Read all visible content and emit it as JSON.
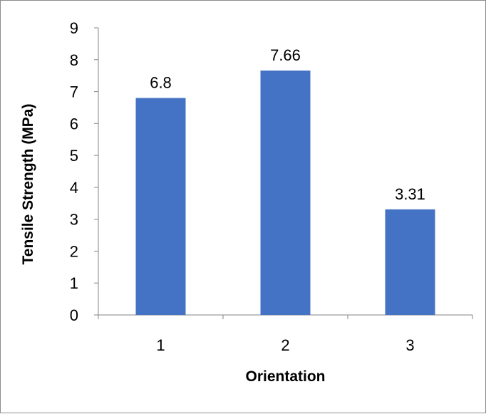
{
  "chart_data": {
    "type": "bar",
    "categories": [
      "1",
      "2",
      "3"
    ],
    "values": [
      6.8,
      7.66,
      3.31
    ],
    "data_labels": [
      "6.8",
      "7.66",
      "3.31"
    ],
    "xlabel": "Orientation",
    "ylabel": "Tensile Strength (MPa)",
    "ylim": [
      0,
      9
    ],
    "yticks": [
      "0",
      "1",
      "2",
      "3",
      "4",
      "5",
      "6",
      "7",
      "8",
      "9"
    ],
    "bar_color": "#4472c4",
    "grid": false,
    "legend": "none"
  }
}
